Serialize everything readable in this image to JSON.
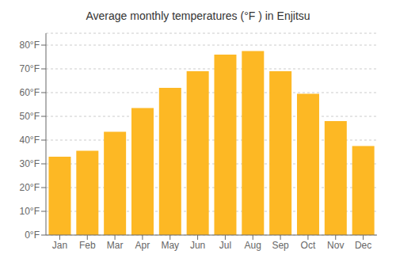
{
  "chart_data": {
    "type": "bar",
    "title": "Average monthly temperatures (°F ) in Enjitsu",
    "categories": [
      "Jan",
      "Feb",
      "Mar",
      "Apr",
      "May",
      "Jun",
      "Jul",
      "Aug",
      "Sep",
      "Oct",
      "Nov",
      "Dec"
    ],
    "values": [
      33,
      35.5,
      43.5,
      53.5,
      62,
      69,
      76,
      77.5,
      69,
      59.5,
      48,
      37.5
    ],
    "color": "#FDB824",
    "ylim": [
      0,
      85
    ],
    "yticks": [
      {
        "value": 0,
        "label": "0°F"
      },
      {
        "value": 10,
        "label": "10°F"
      },
      {
        "value": 20,
        "label": "20°F"
      },
      {
        "value": 30,
        "label": "30°F"
      },
      {
        "value": 40,
        "label": "40°F"
      },
      {
        "value": 50,
        "label": "50°F"
      },
      {
        "value": 60,
        "label": "60°F"
      },
      {
        "value": 70,
        "label": "70°F"
      },
      {
        "value": 80,
        "label": "80°F"
      }
    ],
    "grid": true
  }
}
